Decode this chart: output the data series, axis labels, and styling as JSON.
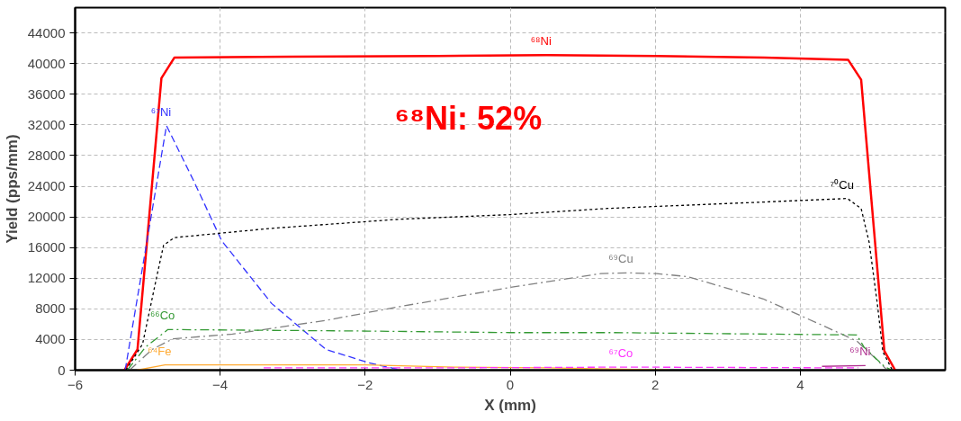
{
  "chart_data": {
    "type": "line",
    "xlabel": "X (mm)",
    "ylabel": "Yield (pps/mm)",
    "xlim": [
      -6,
      6
    ],
    "ylim": [
      0,
      47300
    ],
    "xticks": [
      -6,
      -4,
      -2,
      0,
      2,
      4
    ],
    "yticks": [
      0,
      4000,
      8000,
      12000,
      16000,
      20000,
      24000,
      28000,
      32000,
      36000,
      40000,
      44000
    ],
    "grid": true,
    "annotations": [
      "⁶⁸Ni: 52%"
    ],
    "series": [
      {
        "name": "⁶⁸Ni",
        "color": "#ff0000",
        "line_style": "solid",
        "x": [
          -5.32,
          -5.14,
          -4.81,
          -4.63,
          -3,
          -1,
          0.5,
          2,
          3.5,
          4.66,
          4.84,
          5.16,
          5.31
        ],
        "values": [
          0,
          2700,
          38100,
          40800,
          40900,
          41000,
          41100,
          41000,
          40800,
          40500,
          37900,
          2500,
          0
        ]
      },
      {
        "name": "⁶⁷Ni",
        "color": "#3333ff",
        "line_style": "dashed",
        "x": [
          -5.31,
          -4.74,
          -4.36,
          -3.98,
          -3.29,
          -2.54,
          -1.96,
          -1.69,
          -1.5
        ],
        "values": [
          0,
          31900,
          24600,
          16900,
          8700,
          2700,
          1000,
          400,
          0
        ]
      },
      {
        "name": "⁷⁰Cu",
        "color": "#000000",
        "line_style": "dotted",
        "x": [
          -5.3,
          -5.07,
          -4.87,
          -4.78,
          -4.63,
          -3.3,
          -1.52,
          0,
          1.34,
          3.4,
          4.65,
          4.84,
          4.95,
          5.06,
          5.14,
          5.27
        ],
        "values": [
          0,
          3400,
          12400,
          16300,
          17300,
          18500,
          19700,
          20300,
          21100,
          21900,
          22400,
          21100,
          16700,
          8900,
          2400,
          0
        ]
      },
      {
        "name": "⁶⁹Cu",
        "color": "#808080",
        "line_style": "dashdot",
        "x": [
          -5.25,
          -4.94,
          -4.65,
          -3.83,
          -2.54,
          -1.52,
          0,
          1.25,
          1.6,
          2.02,
          2.45,
          3.49,
          4.34,
          4.78,
          5.03,
          5.2
        ],
        "values": [
          0,
          2700,
          4100,
          4700,
          6500,
          8300,
          10800,
          12600,
          12700,
          12600,
          12200,
          9300,
          5700,
          3800,
          1600,
          0
        ]
      },
      {
        "name": "⁶⁶Co",
        "color": "#339933",
        "line_style": "dashdot",
        "x": [
          -5.28,
          -5.03,
          -4.72,
          -1.96,
          0,
          1.42,
          4.78,
          4.88,
          5.17,
          5.27
        ],
        "values": [
          0,
          3000,
          5300,
          5100,
          4900,
          4900,
          4600,
          3000,
          400,
          0
        ]
      },
      {
        "name": "⁶⁴Fe",
        "color": "#ffaa33",
        "line_style": "solid",
        "x": [
          -5.15,
          -4.76,
          -2,
          -0.77,
          0.5,
          2.2
        ],
        "values": [
          0,
          700,
          700,
          400,
          300,
          0
        ]
      },
      {
        "name": "⁶⁷Co",
        "color": "#ff33ff",
        "line_style": "dashed",
        "x": [
          -3.4,
          -1,
          1.6,
          4.8
        ],
        "values": [
          300,
          300,
          400,
          300
        ]
      },
      {
        "name": "⁶⁹Ni",
        "color": "#b03090",
        "line_style": "solid",
        "x": [
          4.3,
          4.9
        ],
        "values": [
          500,
          600
        ]
      }
    ]
  }
}
